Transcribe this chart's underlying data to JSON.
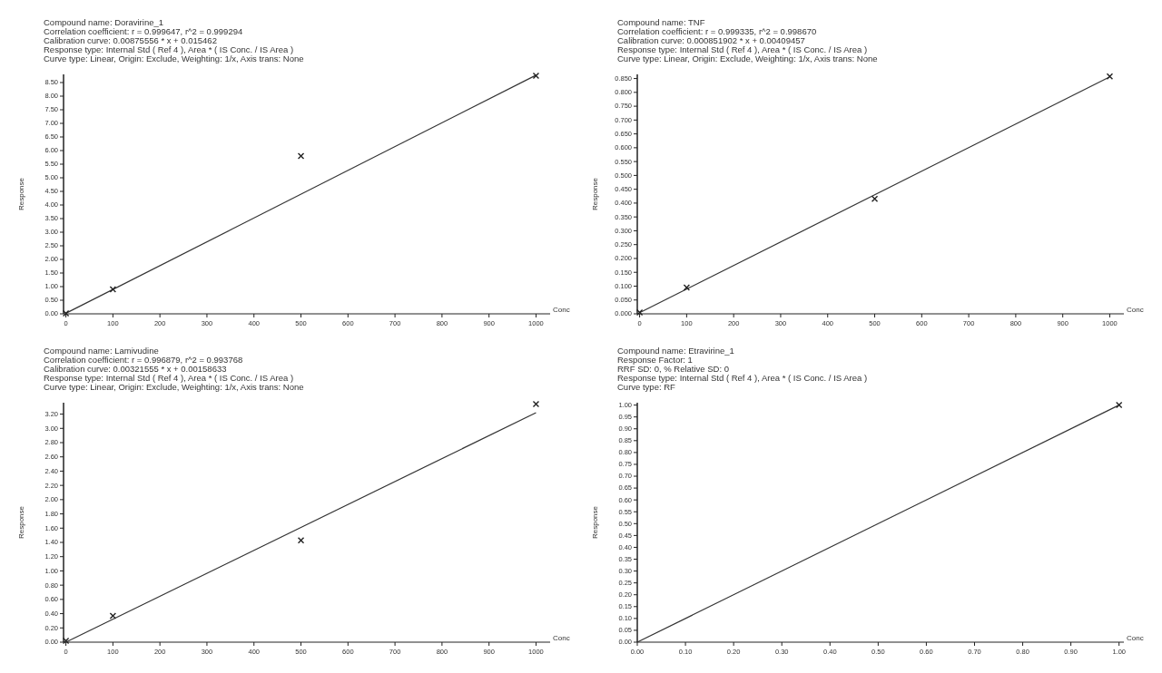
{
  "chart_data": [
    {
      "type": "scatter",
      "title": "Compound name: Doravirine_1",
      "annotations": [
        "Correlation coefficient: r = 0.999647, r^2 = 0.999294",
        "Calibration curve: 0.00875556 * x + 0.015462",
        "Response type: Internal Std ( Ref 4 ), Area * ( IS Conc. / IS Area )",
        "Curve type: Linear, Origin: Exclude, Weighting: 1/x, Axis trans: None"
      ],
      "xlabel": "Conc",
      "ylabel": "Response",
      "xlim": [
        -5,
        1030
      ],
      "ylim": [
        0,
        8.8
      ],
      "xticks": [
        0,
        100,
        200,
        300,
        400,
        500,
        600,
        700,
        800,
        900,
        1000
      ],
      "yticks": [
        {
          "value": 0,
          "label": "0.00"
        },
        {
          "value": 0.5,
          "label": "0.50"
        },
        {
          "value": 1,
          "label": "1.00"
        },
        {
          "value": 1.5,
          "label": "1.50"
        },
        {
          "value": 2,
          "label": "2.00"
        },
        {
          "value": 2.5,
          "label": "2.50"
        },
        {
          "value": 3,
          "label": "3.00"
        },
        {
          "value": 3.5,
          "label": "3.50"
        },
        {
          "value": 4,
          "label": "4.00"
        },
        {
          "value": 4.5,
          "label": "4.50"
        },
        {
          "value": 5,
          "label": "5.00"
        },
        {
          "value": 5.5,
          "label": "5.50"
        },
        {
          "value": 6,
          "label": "6.00"
        },
        {
          "value": 6.5,
          "label": "6.50"
        },
        {
          "value": 7,
          "label": "7.00"
        },
        {
          "value": 7.5,
          "label": "7.50"
        },
        {
          "value": 8,
          "label": "8.00"
        },
        {
          "value": 8.5,
          "label": "8.50"
        }
      ],
      "series": [
        {
          "type": "line",
          "color": "#333333",
          "x": [
            0,
            1000
          ],
          "values": [
            0.02,
            8.77
          ]
        },
        {
          "color": "#222222",
          "marker": "cross",
          "x": [
            0,
            100,
            500,
            1000
          ],
          "values": [
            0.02,
            0.9,
            5.8,
            8.75
          ]
        }
      ]
    },
    {
      "type": "scatter",
      "title": "Compound name: TNF",
      "annotations": [
        "Correlation coefficient: r = 0.999335, r^2 = 0.998670",
        "Calibration curve: 0.000851902 * x + 0.00409457",
        "Response type: Internal Std ( Ref 4 ), Area * ( IS Conc. / IS Area )",
        "Curve type: Linear, Origin: Exclude, Weighting: 1/x, Axis trans: None"
      ],
      "xlabel": "Conc",
      "ylabel": "Response",
      "xlim": [
        -5,
        1030
      ],
      "ylim": [
        0,
        0.865
      ],
      "xticks": [
        0,
        100,
        200,
        300,
        400,
        500,
        600,
        700,
        800,
        900,
        1000
      ],
      "yticks": [
        {
          "value": 0,
          "label": "0.000"
        },
        {
          "value": 0.05,
          "label": "0.050"
        },
        {
          "value": 0.1,
          "label": "0.100"
        },
        {
          "value": 0.15,
          "label": "0.150"
        },
        {
          "value": 0.2,
          "label": "0.200"
        },
        {
          "value": 0.25,
          "label": "0.250"
        },
        {
          "value": 0.3,
          "label": "0.300"
        },
        {
          "value": 0.35,
          "label": "0.350"
        },
        {
          "value": 0.4,
          "label": "0.400"
        },
        {
          "value": 0.45,
          "label": "0.450"
        },
        {
          "value": 0.5,
          "label": "0.500"
        },
        {
          "value": 0.55,
          "label": "0.550"
        },
        {
          "value": 0.6,
          "label": "0.600"
        },
        {
          "value": 0.65,
          "label": "0.650"
        },
        {
          "value": 0.7,
          "label": "0.700"
        },
        {
          "value": 0.75,
          "label": "0.750"
        },
        {
          "value": 0.8,
          "label": "0.800"
        },
        {
          "value": 0.85,
          "label": "0.850"
        }
      ],
      "series": [
        {
          "type": "line",
          "color": "#333333",
          "x": [
            0,
            1000
          ],
          "values": [
            0.004,
            0.856
          ]
        },
        {
          "color": "#222222",
          "marker": "cross",
          "x": [
            0,
            100,
            500,
            1000
          ],
          "values": [
            0.005,
            0.095,
            0.415,
            0.858
          ]
        }
      ]
    },
    {
      "type": "scatter",
      "title": "Compound name: Lamivudine",
      "annotations": [
        "Correlation coefficient: r = 0.996879, r^2 = 0.993768",
        "Calibration curve: 0.00321555 * x + 0.00158633",
        "Response type: Internal Std ( Ref 4 ), Area * ( IS Conc. / IS Area )",
        "Curve type: Linear, Origin: Exclude, Weighting: 1/x, Axis trans: None"
      ],
      "xlabel": "Conc",
      "ylabel": "Response",
      "xlim": [
        -5,
        1030
      ],
      "ylim": [
        0,
        3.36
      ],
      "xticks": [
        0,
        100,
        200,
        300,
        400,
        500,
        600,
        700,
        800,
        900,
        1000
      ],
      "yticks": [
        {
          "value": 0,
          "label": "0.00"
        },
        {
          "value": 0.2,
          "label": "0.20"
        },
        {
          "value": 0.4,
          "label": "0.40"
        },
        {
          "value": 0.6,
          "label": "0.60"
        },
        {
          "value": 0.8,
          "label": "0.80"
        },
        {
          "value": 1,
          "label": "1.00"
        },
        {
          "value": 1.2,
          "label": "1.20"
        },
        {
          "value": 1.4,
          "label": "1.40"
        },
        {
          "value": 1.6,
          "label": "1.60"
        },
        {
          "value": 1.8,
          "label": "1.80"
        },
        {
          "value": 2,
          "label": "2.00"
        },
        {
          "value": 2.2,
          "label": "2.20"
        },
        {
          "value": 2.4,
          "label": "2.40"
        },
        {
          "value": 2.6,
          "label": "2.60"
        },
        {
          "value": 2.8,
          "label": "2.80"
        },
        {
          "value": 3,
          "label": "3.00"
        },
        {
          "value": 3.2,
          "label": "3.20"
        }
      ],
      "series": [
        {
          "type": "line",
          "color": "#333333",
          "x": [
            0,
            1000
          ],
          "values": [
            0,
            3.22
          ]
        },
        {
          "color": "#222222",
          "marker": "cross",
          "x": [
            0,
            100,
            500,
            1000
          ],
          "values": [
            0.02,
            0.37,
            1.43,
            3.34
          ]
        }
      ]
    },
    {
      "type": "scatter",
      "title": "Compound name: Etravirine_1",
      "annotations": [
        "Response Factor: 1",
        "RRF SD: 0, % Relative SD: 0",
        "Response type: Internal Std ( Ref 4 ), Area * ( IS Conc. / IS Area )",
        "Curve type: RF"
      ],
      "xlabel": "Conc",
      "ylabel": "Response",
      "xlim": [
        0,
        1.01
      ],
      "ylim": [
        0,
        1.01
      ],
      "xticks": [
        {
          "value": 0,
          "label": "0.00"
        },
        {
          "value": 0.1,
          "label": "0.10"
        },
        {
          "value": 0.2,
          "label": "0.20"
        },
        {
          "value": 0.3,
          "label": "0.30"
        },
        {
          "value": 0.4,
          "label": "0.40"
        },
        {
          "value": 0.5,
          "label": "0.50"
        },
        {
          "value": 0.6,
          "label": "0.60"
        },
        {
          "value": 0.7,
          "label": "0.70"
        },
        {
          "value": 0.8,
          "label": "0.80"
        },
        {
          "value": 0.9,
          "label": "0.90"
        },
        {
          "value": 1,
          "label": "1.00"
        }
      ],
      "yticks": [
        {
          "value": 0,
          "label": "0.00"
        },
        {
          "value": 0.05,
          "label": "0.05"
        },
        {
          "value": 0.1,
          "label": "0.10"
        },
        {
          "value": 0.15,
          "label": "0.15"
        },
        {
          "value": 0.2,
          "label": "0.20"
        },
        {
          "value": 0.25,
          "label": "0.25"
        },
        {
          "value": 0.3,
          "label": "0.30"
        },
        {
          "value": 0.35,
          "label": "0.35"
        },
        {
          "value": 0.4,
          "label": "0.40"
        },
        {
          "value": 0.45,
          "label": "0.45"
        },
        {
          "value": 0.5,
          "label": "0.50"
        },
        {
          "value": 0.55,
          "label": "0.55"
        },
        {
          "value": 0.6,
          "label": "0.60"
        },
        {
          "value": 0.65,
          "label": "0.65"
        },
        {
          "value": 0.7,
          "label": "0.70"
        },
        {
          "value": 0.75,
          "label": "0.75"
        },
        {
          "value": 0.8,
          "label": "0.80"
        },
        {
          "value": 0.85,
          "label": "0.85"
        },
        {
          "value": 0.9,
          "label": "0.90"
        },
        {
          "value": 0.95,
          "label": "0.95"
        },
        {
          "value": 1,
          "label": "1.00"
        }
      ],
      "series": [
        {
          "type": "line",
          "color": "#333333",
          "x": [
            0,
            1
          ],
          "values": [
            0,
            1
          ]
        },
        {
          "color": "#222222",
          "marker": "cross",
          "x": [
            1
          ],
          "values": [
            1
          ]
        }
      ]
    }
  ]
}
